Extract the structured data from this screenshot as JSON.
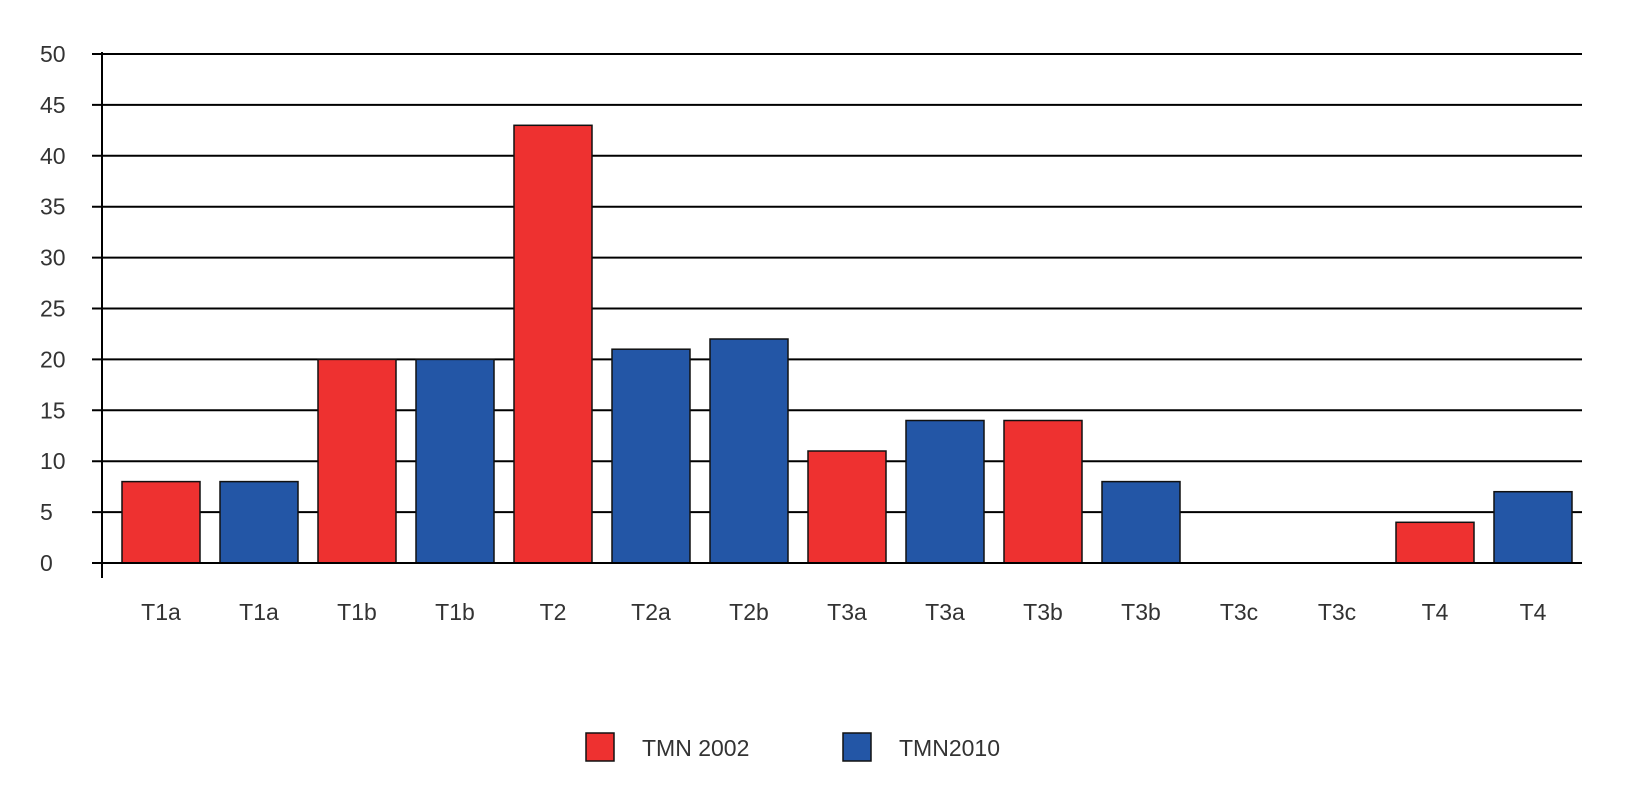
{
  "chart_data": {
    "type": "bar",
    "title": "",
    "xlabel": "",
    "ylabel": "",
    "ylim": [
      0,
      50
    ],
    "yticks": [
      0,
      5,
      10,
      15,
      20,
      25,
      30,
      35,
      40,
      45,
      50
    ],
    "grid": true,
    "legend_position": "bottom",
    "bars": [
      {
        "label": "T1a",
        "series": "TMN 2002",
        "value": 8
      },
      {
        "label": "T1a",
        "series": "TMN2010",
        "value": 8
      },
      {
        "label": "T1b",
        "series": "TMN 2002",
        "value": 20
      },
      {
        "label": "T1b",
        "series": "TMN2010",
        "value": 20
      },
      {
        "label": "T2",
        "series": "TMN 2002",
        "value": 43
      },
      {
        "label": "T2a",
        "series": "TMN2010",
        "value": 21
      },
      {
        "label": "T2b",
        "series": "TMN2010",
        "value": 22
      },
      {
        "label": "T3a",
        "series": "TMN 2002",
        "value": 11
      },
      {
        "label": "T3a",
        "series": "TMN2010",
        "value": 14
      },
      {
        "label": "T3b",
        "series": "TMN 2002",
        "value": 14
      },
      {
        "label": "T3b",
        "series": "TMN2010",
        "value": 8
      },
      {
        "label": "T3c",
        "series": "TMN 2002",
        "value": 0
      },
      {
        "label": "T3c",
        "series": "TMN2010",
        "value": 0
      },
      {
        "label": "T4",
        "series": "TMN 2002",
        "value": 4
      },
      {
        "label": "T4",
        "series": "TMN2010",
        "value": 7
      }
    ],
    "series": [
      {
        "name": "TMN 2002",
        "color": "#ee3130"
      },
      {
        "name": "TMN2010",
        "color": "#2356a6"
      }
    ]
  }
}
